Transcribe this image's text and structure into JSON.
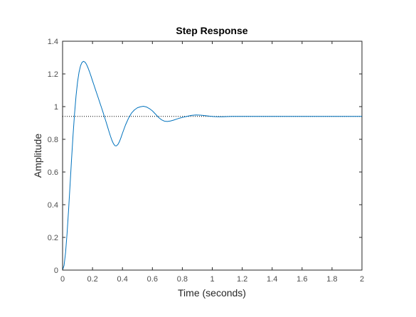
{
  "chart_data": {
    "type": "line",
    "title": "Step Response",
    "xlabel": "Time (seconds)",
    "ylabel": "Amplitude",
    "xlim": [
      0,
      2
    ],
    "ylim": [
      0,
      1.4
    ],
    "x_ticks": [
      "0",
      "0.2",
      "0.4",
      "0.6",
      "0.8",
      "1",
      "1.2",
      "1.4",
      "1.6",
      "1.8",
      "2"
    ],
    "y_ticks": [
      "0",
      "0.2",
      "0.4",
      "0.6",
      "0.8",
      "1",
      "1.2",
      "1.4"
    ],
    "grid": false,
    "legend": "none",
    "line_color": "#0072bd",
    "reference_line": {
      "y": 0.94,
      "style": "dotted",
      "color": "#000000"
    },
    "series": [
      {
        "x": [
          0,
          0.01,
          0.02,
          0.03,
          0.04,
          0.05,
          0.06,
          0.07,
          0.08,
          0.09,
          0.1,
          0.11,
          0.12,
          0.13,
          0.14,
          0.15,
          0.16,
          0.17,
          0.18,
          0.19,
          0.2,
          0.21,
          0.22,
          0.23,
          0.24,
          0.25,
          0.26,
          0.27,
          0.28,
          0.29,
          0.3,
          0.31,
          0.32,
          0.33,
          0.34,
          0.35,
          0.36,
          0.37,
          0.38,
          0.39,
          0.4,
          0.42,
          0.44,
          0.46,
          0.48,
          0.5,
          0.52,
          0.54,
          0.56,
          0.58,
          0.6,
          0.62,
          0.64,
          0.66,
          0.68,
          0.7,
          0.72,
          0.74,
          0.76,
          0.78,
          0.8,
          0.83,
          0.86,
          0.89,
          0.92,
          0.95,
          0.98,
          1.01,
          1.04,
          1.07,
          1.1,
          1.13,
          1.16,
          1.2,
          1.3,
          1.4,
          1.5,
          1.6,
          1.7,
          1.8,
          1.9,
          2
        ],
        "y": [
          0,
          0.029,
          0.108,
          0.224,
          0.366,
          0.522,
          0.679,
          0.826,
          0.957,
          1.066,
          1.151,
          1.211,
          1.25,
          1.271,
          1.277,
          1.272,
          1.258,
          1.237,
          1.213,
          1.186,
          1.158,
          1.131,
          1.103,
          1.076,
          1.049,
          1.021,
          0.994,
          0.966,
          0.937,
          0.908,
          0.878,
          0.848,
          0.819,
          0.793,
          0.773,
          0.761,
          0.76,
          0.769,
          0.786,
          0.81,
          0.837,
          0.887,
          0.928,
          0.96,
          0.98,
          0.993,
          0.999,
          1.002,
          0.998,
          0.988,
          0.974,
          0.955,
          0.935,
          0.92,
          0.911,
          0.909,
          0.912,
          0.917,
          0.923,
          0.929,
          0.934,
          0.94,
          0.946,
          0.949,
          0.948,
          0.945,
          0.942,
          0.939,
          0.938,
          0.938,
          0.939,
          0.94,
          0.94,
          0.94,
          0.94,
          0.94,
          0.94,
          0.94,
          0.94,
          0.94,
          0.94,
          0.94
        ]
      }
    ]
  }
}
